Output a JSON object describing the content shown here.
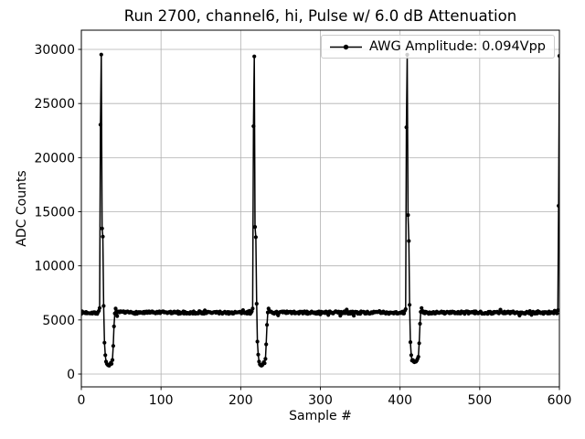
{
  "chart_data": {
    "type": "line",
    "title": "Run 2700, channel6, hi, Pulse w/ 6.0 dB Attenuation",
    "xlabel": "Sample #",
    "ylabel": "ADC Counts",
    "xlim": [
      0,
      600
    ],
    "ylim": [
      -1183,
      31776
    ],
    "xticks": [
      0,
      100,
      200,
      300,
      400,
      500,
      600
    ],
    "yticks": [
      0,
      5000,
      10000,
      15000,
      20000,
      25000,
      30000
    ],
    "grid": true,
    "grid_color": "#b0b0b0",
    "line_color": "#000000",
    "marker": "dot",
    "legend": {
      "position": "upper right",
      "entries": [
        {
          "label": "AWG Amplitude: 0.094Vpp",
          "color": "#000000"
        }
      ]
    },
    "series": {
      "name": "AWG Amplitude: 0.094Vpp",
      "n_samples": 601,
      "baseline": {
        "mean": 5680,
        "noise_pp": 230,
        "outlier_rate": 0.06,
        "outlier_pp": 550
      },
      "pulses": [
        {
          "start_sample": 22,
          "values": [
            5850,
            6100,
            23050,
            29520,
            13450,
            12700,
            6300,
            2900,
            1750,
            1150,
            950,
            850,
            800,
            780,
            900,
            1050,
            950,
            1300,
            2600,
            4400,
            5600,
            6050,
            5800
          ]
        },
        {
          "start_sample": 214,
          "values": [
            5800,
            6050,
            22900,
            29350,
            13600,
            12650,
            6500,
            3000,
            1800,
            1150,
            900,
            820,
            780,
            820,
            950,
            1100,
            1000,
            1400,
            2750,
            4550,
            5700,
            6050,
            5850
          ]
        },
        {
          "start_sample": 406,
          "values": [
            5850,
            6000,
            22800,
            29500,
            14700,
            12300,
            6400,
            2950,
            1750,
            1250,
            1300,
            1150,
            1100,
            1200,
            1150,
            1250,
            1400,
            1600,
            2850,
            4650,
            5750,
            6100,
            5850
          ]
        },
        {
          "start_sample": 598,
          "values": [
            5900,
            15550,
            29400
          ]
        }
      ]
    }
  }
}
